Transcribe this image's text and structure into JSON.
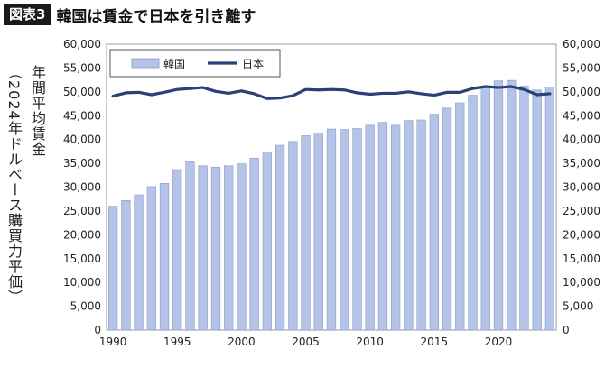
{
  "header": {
    "figure_label": "図表3",
    "title": "韓国は賃金で日本を引き離す"
  },
  "axis": {
    "ylabel_main": "年間平均賃金",
    "ylabel_sub": "（2024年ドルベース購買力平価）"
  },
  "chart_data": {
    "type": "bar",
    "x": [
      1990,
      1991,
      1992,
      1993,
      1994,
      1995,
      1996,
      1997,
      1998,
      1999,
      2000,
      2001,
      2002,
      2003,
      2004,
      2005,
      2006,
      2007,
      2008,
      2009,
      2010,
      2011,
      2012,
      2013,
      2014,
      2015,
      2016,
      2017,
      2018,
      2019,
      2020,
      2021,
      2022,
      2023,
      2024
    ],
    "xticks": [
      "1990",
      "1995",
      "2000",
      "2005",
      "2010",
      "2015",
      "2020"
    ],
    "yticks_left": [
      "0",
      "5,000",
      "10,000",
      "15,000",
      "20,000",
      "25,000",
      "30,000",
      "35,000",
      "40,000",
      "45,000",
      "50,000",
      "55,000",
      "60,000"
    ],
    "yticks_right": [
      "0",
      "5,000",
      "10,000",
      "15,000",
      "20,000",
      "25,000",
      "30,000",
      "35,000",
      "40,000",
      "45,000",
      "50,000",
      "55,000",
      "60,000"
    ],
    "ylim": [
      0,
      60000
    ],
    "legend_position": "top-left",
    "series": [
      {
        "name": "韓国",
        "kind": "bar",
        "color": "#b4c4e8",
        "values": [
          26000,
          27200,
          28400,
          30100,
          30800,
          33700,
          35300,
          34500,
          34200,
          34500,
          34900,
          36100,
          37400,
          38800,
          39600,
          40800,
          41400,
          42200,
          42100,
          42300,
          43000,
          43600,
          43000,
          44000,
          44100,
          45300,
          46600,
          47700,
          49300,
          51000,
          52300,
          52400,
          51200,
          50400,
          51000
        ]
      },
      {
        "name": "日本",
        "kind": "line",
        "color": "#2b3f78",
        "values": [
          49100,
          49800,
          49900,
          49400,
          49900,
          50500,
          50700,
          50900,
          50100,
          49700,
          50200,
          49600,
          48600,
          48700,
          49200,
          50500,
          50400,
          50500,
          50400,
          49800,
          49500,
          49700,
          49700,
          50000,
          49600,
          49300,
          49900,
          49900,
          50700,
          51100,
          50900,
          51100,
          50500,
          49400,
          49600
        ]
      }
    ]
  }
}
